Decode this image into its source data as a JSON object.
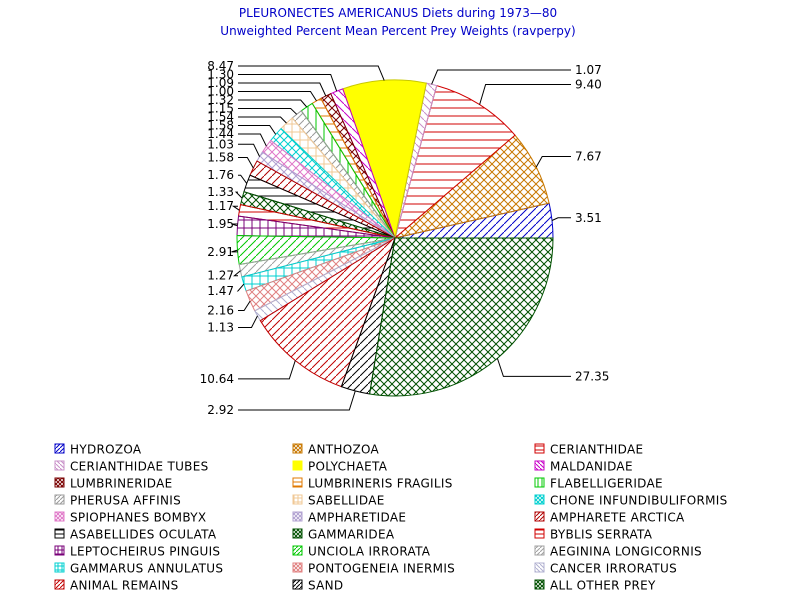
{
  "chart_data": {
    "type": "pie",
    "title": "PLEURONECTES AMERICANUS Diets during 1973—80",
    "subtitle": "Unweighted Percent Mean Percent Prey  Weights (ravperpy)",
    "slices": [
      {
        "name": "HYDROZOA",
        "value": 3.51,
        "label": "3.51",
        "color": "#0000c8",
        "pattern": "hatch-r"
      },
      {
        "name": "ANTHOZOA",
        "value": 7.67,
        "label": "7.67",
        "color": "#c87800",
        "pattern": "cross-diag"
      },
      {
        "name": "CERIANTHIDAE",
        "value": 9.4,
        "label": "9.40",
        "color": "#d00000",
        "pattern": "hatch-h"
      },
      {
        "name": "CERIANTHIDAE TUBES",
        "value": 1.07,
        "label": "1.07",
        "color": "#c890c8",
        "pattern": "hatch-l"
      },
      {
        "name": "POLYCHAETA",
        "value": 8.47,
        "label": "8.47",
        "color": "#ffff00",
        "pattern": "solid"
      },
      {
        "name": "MALDANIDAE",
        "value": 1.3,
        "label": "1.30",
        "color": "#c800c8",
        "pattern": "hatch-l"
      },
      {
        "name": "LUMBRINERIDAE",
        "value": 1.09,
        "label": "1.09",
        "color": "#7a0000",
        "pattern": "cross-diag"
      },
      {
        "name": "LUMBRINERIS FRAGILIS",
        "value": 1.0,
        "label": "1.00",
        "color": "#e07800",
        "pattern": "hatch-h"
      },
      {
        "name": "FLABELLIGERIDAE",
        "value": 1.32,
        "label": "1.32",
        "color": "#00c800",
        "pattern": "hatch-v"
      },
      {
        "name": "PHERUSA AFFINIS",
        "value": 1.15,
        "label": "1.15",
        "color": "#9a9a9a",
        "pattern": "hatch-r"
      },
      {
        "name": "SABELLIDAE",
        "value": 1.54,
        "label": "1.54",
        "color": "#f0c896",
        "pattern": "cross"
      },
      {
        "name": "CHONE INFUNDIBULIFORMIS",
        "value": 1.58,
        "label": "1.58",
        "color": "#00d0d0",
        "pattern": "cross-diag"
      },
      {
        "name": "SPIOPHANES BOMBYX",
        "value": 1.44,
        "label": "1.44",
        "color": "#e078c8",
        "pattern": "cross-diag"
      },
      {
        "name": "AMPHARETIDAE",
        "value": 1.03,
        "label": "1.03",
        "color": "#b0a0d0",
        "pattern": "cross-diag"
      },
      {
        "name": "AMPHARETE ARCTICA",
        "value": 1.58,
        "label": "1.58",
        "color": "#b00000",
        "pattern": "hatch-r"
      },
      {
        "name": "ASABELLIDES OCULATA",
        "value": 1.76,
        "label": "1.76",
        "color": "#000000",
        "pattern": "hatch-h"
      },
      {
        "name": "GAMMARIDEA",
        "value": 1.33,
        "label": "1.33",
        "color": "#005000",
        "pattern": "cross-diag"
      },
      {
        "name": "BYBLIS SERRATA",
        "value": 1.17,
        "label": "1.17",
        "color": "#d00000",
        "pattern": "hatch-h"
      },
      {
        "name": "LEPTOCHEIRUS PINGUIS",
        "value": 1.95,
        "label": "1.95",
        "color": "#780078",
        "pattern": "cross"
      },
      {
        "name": "UNCIOLA IRRORATA",
        "value": 2.91,
        "label": "2.91",
        "color": "#00c800",
        "pattern": "hatch-r"
      },
      {
        "name": "AEGININA LONGICORNIS",
        "value": 1.27,
        "label": "1.27",
        "color": "#a0a0a0",
        "pattern": "hatch-r"
      },
      {
        "name": "GAMMARUS ANNULATUS",
        "value": 1.47,
        "label": "1.47",
        "color": "#00d0d0",
        "pattern": "cross"
      },
      {
        "name": "PONTOGENEIA INERMIS",
        "value": 2.16,
        "label": "2.16",
        "color": "#e08080",
        "pattern": "cross-diag"
      },
      {
        "name": "CANCER IRRORATUS",
        "value": 1.13,
        "label": "1.13",
        "color": "#b0b0d0",
        "pattern": "hatch-l"
      },
      {
        "name": "ANIMAL REMAINS",
        "value": 10.64,
        "label": "10.64",
        "color": "#c00000",
        "pattern": "hatch-r"
      },
      {
        "name": "SAND",
        "value": 2.92,
        "label": "2.92",
        "color": "#000000",
        "pattern": "hatch-r"
      },
      {
        "name": "ALL OTHER PREY",
        "value": 27.35,
        "label": "27.35",
        "color": "#005000",
        "pattern": "cross-diag"
      }
    ],
    "start_angle_deg": 0,
    "direction": "counterclockwise",
    "legend_position": "bottom"
  }
}
